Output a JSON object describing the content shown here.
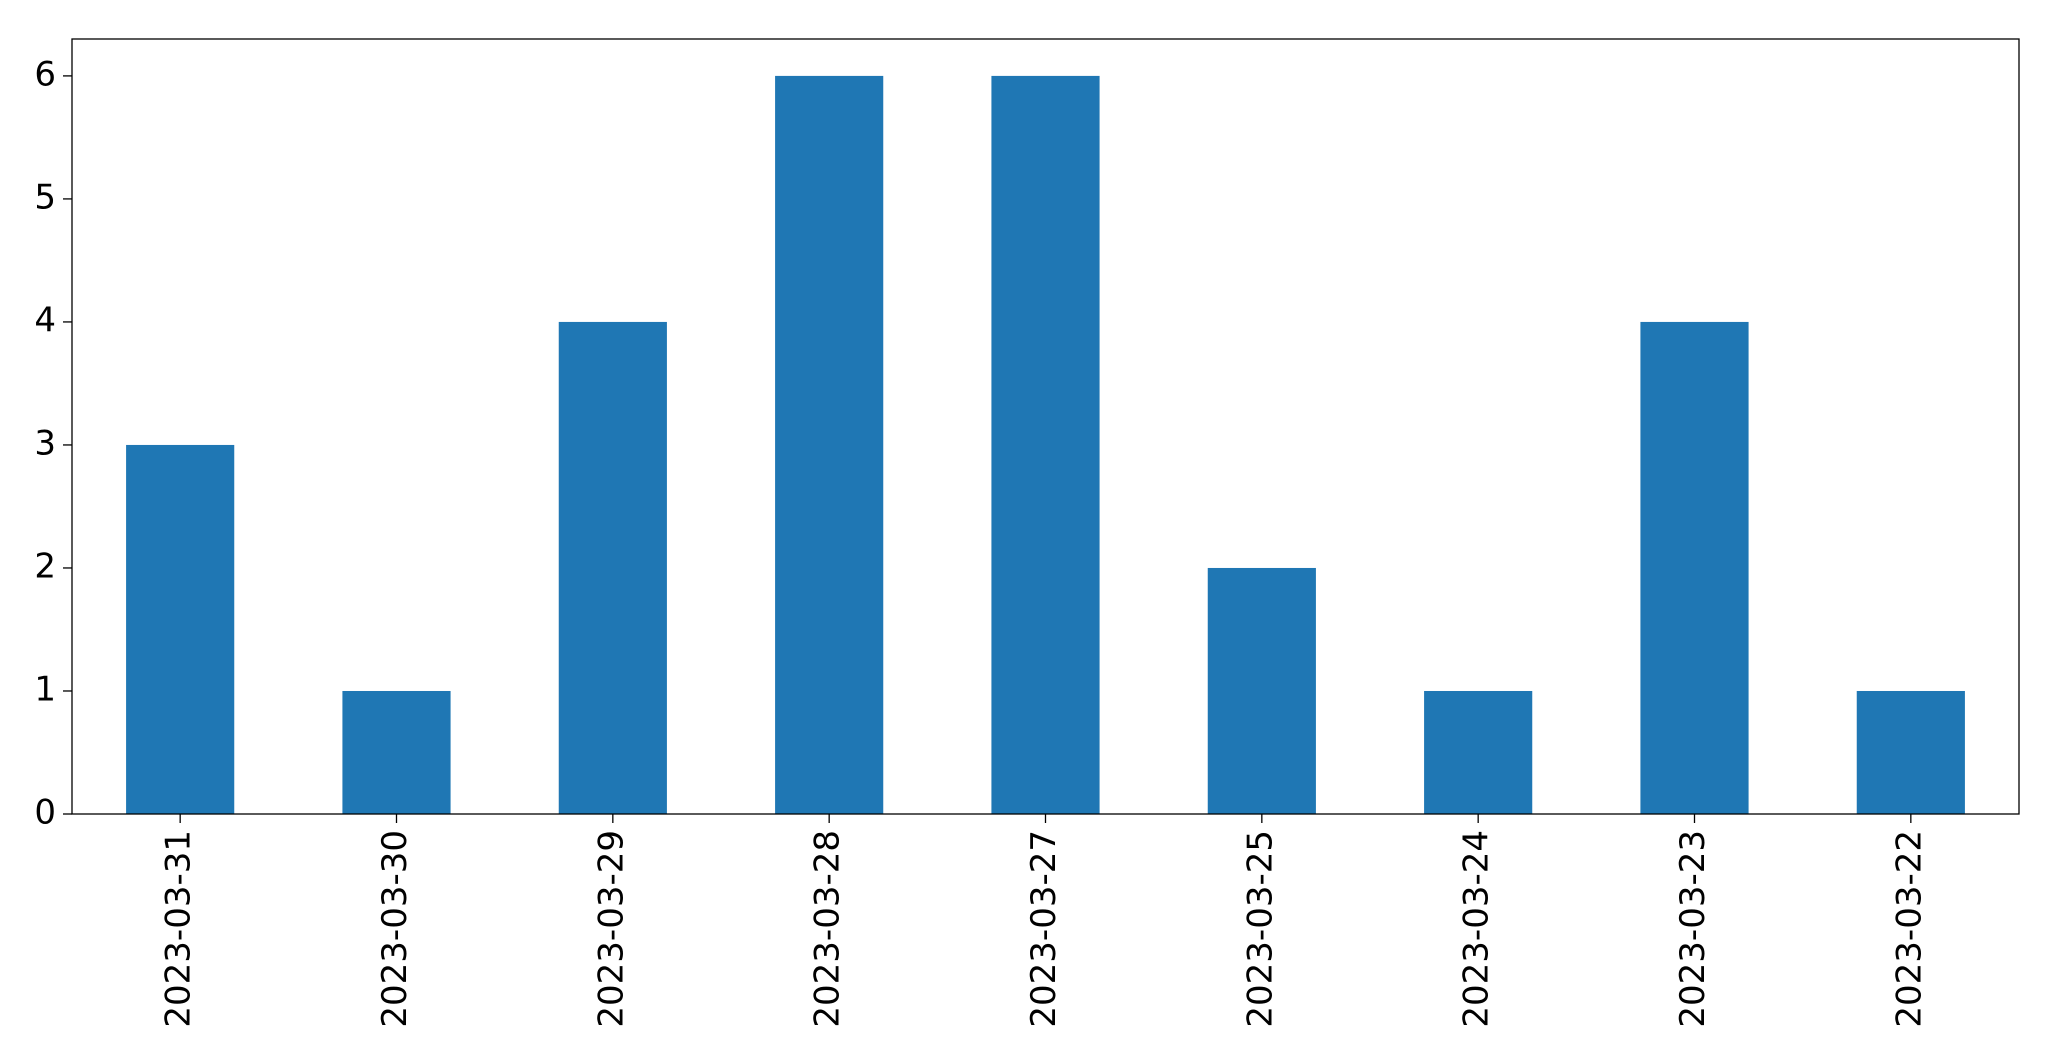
{
  "chart_data": {
    "type": "bar",
    "categories": [
      "2023-03-31",
      "2023-03-30",
      "2023-03-29",
      "2023-03-28",
      "2023-03-27",
      "2023-03-25",
      "2023-03-24",
      "2023-03-23",
      "2023-03-22"
    ],
    "values": [
      3,
      1,
      4,
      6,
      6,
      2,
      1,
      4,
      1
    ],
    "color": "#1f77b4",
    "ylim": [
      0,
      6.3
    ],
    "yticks": [
      0,
      1,
      2,
      3,
      4,
      5,
      6
    ],
    "grid": false
  }
}
